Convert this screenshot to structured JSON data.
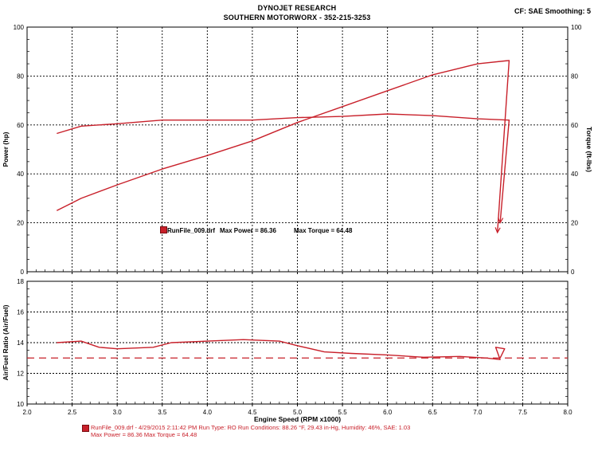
{
  "header": {
    "title": "DYNOJET RESEARCH",
    "subtitle": "SOUTHERN MOTORWORX - 352-215-3253",
    "right": "CF: SAE  Smoothing: 5"
  },
  "colors": {
    "series": "#c8202a",
    "grid": "#000000",
    "target": "#c8202a"
  },
  "legend": {
    "run_name": "RunFile_009.drf",
    "max_power_text": "Max Power = 86.36",
    "max_torque_text": "Max Torque = 64.48"
  },
  "footer": {
    "line1": "RunFile_009.drf - 4/29/2015 2:11:42 PM  Run Type: RO  Run Conditions: 88.26 °F, 29.43 in-Hg,  Humidity:  46%, SAE: 1.03",
    "line2": "Max Power = 86.36  Max Torque = 64.48"
  },
  "chart_data": [
    {
      "type": "line",
      "name": "power-torque",
      "ylabel": "Power (hp)",
      "ylabel_right": "Torque (ft-lbs)",
      "xlim": [
        2.0,
        8.0
      ],
      "ylim": [
        0,
        100
      ],
      "ylim_right": [
        0,
        100
      ],
      "x_ticks": [
        "2.0",
        "2.5",
        "3.0",
        "3.5",
        "4.0",
        "4.5",
        "5.0",
        "5.5",
        "6.0",
        "6.5",
        "7.0",
        "7.5",
        "8.0"
      ],
      "y_ticks": [
        "0",
        "20",
        "40",
        "60",
        "80",
        "100"
      ],
      "grid": true,
      "series": [
        {
          "name": "Power",
          "x": [
            2.33,
            2.6,
            3.0,
            3.5,
            4.0,
            4.5,
            5.0,
            5.5,
            6.0,
            6.5,
            7.0,
            7.35,
            7.22
          ],
          "y": [
            25,
            30,
            35.5,
            42,
            47.5,
            53.5,
            61,
            67.5,
            74,
            80.5,
            85,
            86.36,
            16
          ]
        },
        {
          "name": "Torque",
          "x": [
            2.33,
            2.6,
            3.0,
            3.5,
            4.0,
            4.5,
            5.0,
            5.5,
            6.0,
            6.5,
            7.0,
            7.35,
            7.25
          ],
          "y": [
            56.5,
            59.5,
            60.5,
            62,
            62,
            62,
            63,
            63.5,
            64.48,
            63.8,
            62.5,
            62,
            20
          ]
        }
      ]
    },
    {
      "type": "line",
      "name": "air-fuel",
      "xlabel": "Engine Speed (RPM x1000)",
      "ylabel": "Air/Fuel Ratio (Air/Fuel)",
      "xlim": [
        2.0,
        8.0
      ],
      "ylim": [
        10,
        18
      ],
      "x_ticks": [
        "2.0",
        "2.5",
        "3.0",
        "3.5",
        "4.0",
        "4.5",
        "5.0",
        "5.5",
        "6.0",
        "6.5",
        "7.0",
        "7.5",
        "8.0"
      ],
      "y_ticks": [
        "10",
        "12",
        "14",
        "16",
        "18"
      ],
      "grid": true,
      "reference_line": 13.0,
      "series": [
        {
          "name": "AFR",
          "x": [
            2.33,
            2.6,
            2.8,
            3.0,
            3.4,
            3.6,
            4.0,
            4.4,
            4.8,
            5.0,
            5.3,
            5.6,
            6.0,
            6.4,
            6.8,
            7.1,
            7.25,
            7.2,
            7.3,
            7.25
          ],
          "y": [
            14.0,
            14.1,
            13.7,
            13.6,
            13.7,
            14.0,
            14.1,
            14.2,
            14.1,
            13.8,
            13.4,
            13.3,
            13.2,
            13.05,
            13.1,
            13.0,
            12.9,
            13.7,
            13.6,
            13.0
          ]
        }
      ]
    }
  ]
}
